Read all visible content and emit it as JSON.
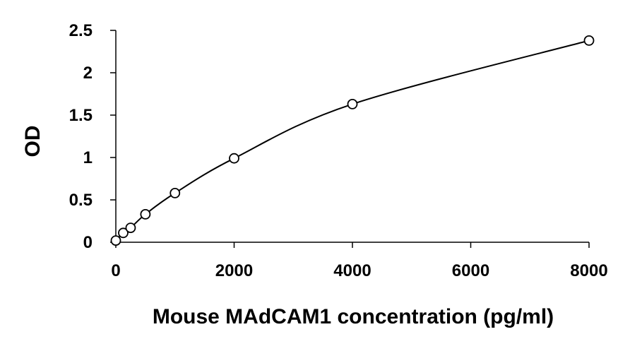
{
  "chart_data": {
    "type": "scatter",
    "title": "",
    "xlabel": "Mouse MAdCAM1 concentration (pg/ml)",
    "ylabel": "OD",
    "xlim": [
      0,
      8000
    ],
    "ylim": [
      0,
      2.5
    ],
    "x_ticks": [
      "0",
      "2000",
      "4000",
      "6000",
      "8000"
    ],
    "y_ticks": [
      "0",
      "0.5",
      "1",
      "1.5",
      "2",
      "2.5"
    ],
    "grid": false,
    "legend": "none",
    "fit_line": "smooth curve through points",
    "colors": {
      "line": "#000000",
      "marker_edge": "#000000",
      "marker_fill": "#ffffff"
    },
    "series": [
      {
        "x": [
          0,
          125,
          250,
          500,
          1000,
          2000,
          4000,
          8000
        ],
        "y": [
          0.02,
          0.11,
          0.17,
          0.33,
          0.58,
          0.99,
          1.63,
          2.38
        ]
      }
    ]
  }
}
